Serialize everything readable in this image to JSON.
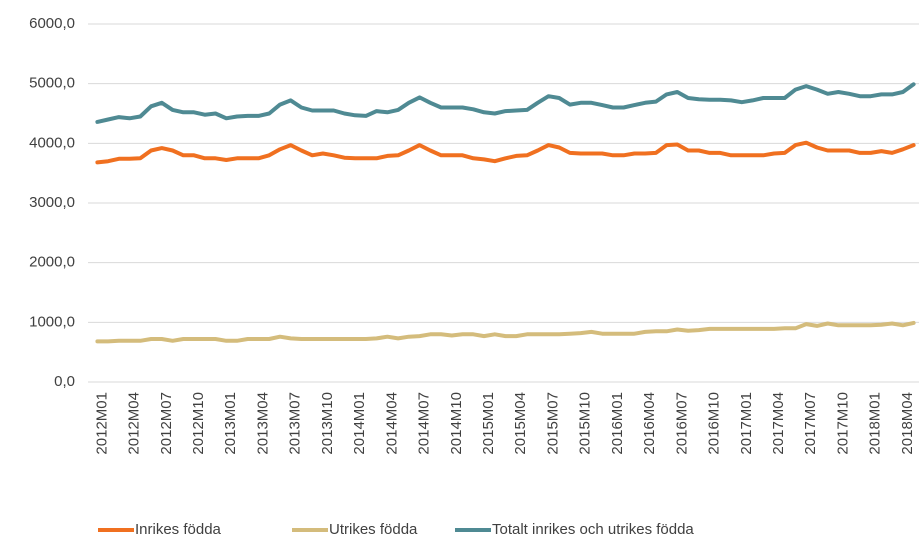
{
  "chart_data": {
    "type": "line",
    "categories": [
      "2012M01",
      null,
      null,
      "2012M04",
      null,
      null,
      "2012M07",
      null,
      null,
      "2012M10",
      null,
      null,
      "2013M01",
      null,
      null,
      "2013M04",
      null,
      null,
      "2013M07",
      null,
      null,
      "2013M10",
      null,
      null,
      "2014M01",
      null,
      null,
      "2014M04",
      null,
      null,
      "2014M07",
      null,
      null,
      "2014M10",
      null,
      null,
      "2015M01",
      null,
      null,
      "2015M04",
      null,
      null,
      "2015M07",
      null,
      null,
      "2015M10",
      null,
      null,
      "2016M01",
      null,
      null,
      "2016M04",
      null,
      null,
      "2016M07",
      null,
      null,
      "2016M10",
      null,
      null,
      "2017M01",
      null,
      null,
      "2017M04",
      null,
      null,
      "2017M07",
      null,
      null,
      "2017M10",
      null,
      null,
      "2018M01",
      null,
      null,
      "2018M04",
      null
    ],
    "series": [
      {
        "name": "Inrikes födda",
        "color": "#f07020",
        "values": [
          3680,
          3700,
          3740,
          3740,
          3750,
          3880,
          3920,
          3880,
          3800,
          3800,
          3750,
          3750,
          3720,
          3750,
          3750,
          3750,
          3800,
          3900,
          3970,
          3880,
          3800,
          3830,
          3800,
          3760,
          3750,
          3750,
          3750,
          3790,
          3800,
          3880,
          3970,
          3880,
          3800,
          3800,
          3800,
          3750,
          3730,
          3700,
          3750,
          3790,
          3800,
          3880,
          3970,
          3930,
          3840,
          3830,
          3830,
          3830,
          3800,
          3800,
          3830,
          3830,
          3840,
          3970,
          3980,
          3880,
          3880,
          3840,
          3840,
          3800,
          3800,
          3800,
          3800,
          3830,
          3840,
          3970,
          4010,
          3930,
          3880,
          3880,
          3880,
          3840,
          3840,
          3870,
          3840,
          3900,
          3970
        ]
      },
      {
        "name": "Utrikes födda",
        "color": "#d4bc7c",
        "values": [
          680,
          680,
          690,
          690,
          690,
          720,
          720,
          690,
          720,
          720,
          720,
          720,
          690,
          690,
          720,
          720,
          720,
          760,
          730,
          720,
          720,
          720,
          720,
          720,
          720,
          720,
          730,
          760,
          730,
          760,
          770,
          800,
          800,
          780,
          800,
          800,
          770,
          800,
          770,
          770,
          800,
          800,
          800,
          800,
          810,
          820,
          840,
          810,
          810,
          810,
          810,
          840,
          850,
          850,
          880,
          860,
          870,
          890,
          890,
          890,
          890,
          890,
          890,
          890,
          900,
          900,
          970,
          940,
          980,
          950,
          950,
          950,
          950,
          960,
          980,
          950,
          990
        ]
      },
      {
        "name": "Totalt inrikes och utrikes födda",
        "color": "#4f8a93",
        "values": [
          4360,
          4400,
          4440,
          4420,
          4450,
          4620,
          4680,
          4560,
          4520,
          4520,
          4480,
          4500,
          4420,
          4450,
          4460,
          4460,
          4500,
          4650,
          4720,
          4600,
          4550,
          4550,
          4550,
          4500,
          4470,
          4460,
          4540,
          4520,
          4560,
          4680,
          4770,
          4680,
          4600,
          4600,
          4600,
          4570,
          4520,
          4500,
          4540,
          4550,
          4560,
          4680,
          4790,
          4760,
          4650,
          4680,
          4680,
          4640,
          4600,
          4600,
          4640,
          4680,
          4700,
          4820,
          4860,
          4760,
          4740,
          4730,
          4730,
          4720,
          4690,
          4720,
          4760,
          4760,
          4760,
          4900,
          4960,
          4900,
          4830,
          4860,
          4830,
          4790,
          4790,
          4820,
          4820,
          4860,
          4990
        ]
      }
    ],
    "ylim": [
      0,
      6000
    ],
    "yticks": [
      {
        "value": 0,
        "label": "0,0"
      },
      {
        "value": 1000,
        "label": "1000,0"
      },
      {
        "value": 2000,
        "label": "2000,0"
      },
      {
        "value": 3000,
        "label": "3000,0"
      },
      {
        "value": 4000,
        "label": "4000,0"
      },
      {
        "value": 5000,
        "label": "5000,0"
      },
      {
        "value": 6000,
        "label": "6000,0"
      }
    ],
    "grid": true
  }
}
